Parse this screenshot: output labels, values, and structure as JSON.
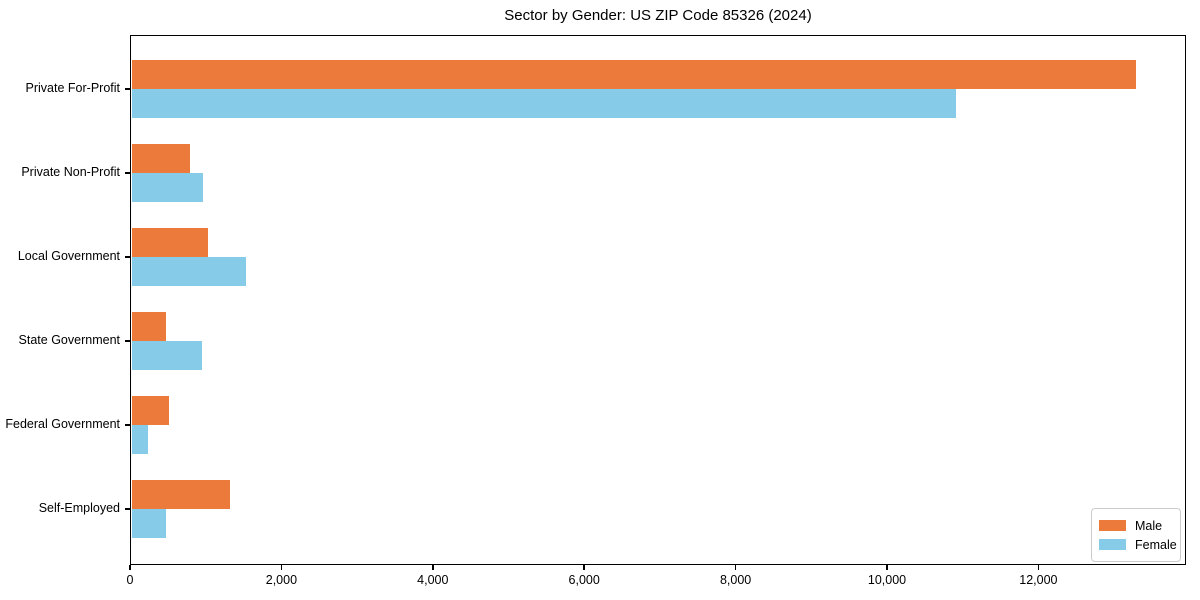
{
  "chart_data": {
    "type": "bar",
    "orientation": "horizontal",
    "title": "Sector by Gender: US ZIP Code 85326 (2024)",
    "categories": [
      "Private For-Profit",
      "Private Non-Profit",
      "Local Government",
      "State Government",
      "Federal Government",
      "Self-Employed"
    ],
    "series": [
      {
        "name": "Male",
        "color": "#EB7A3B",
        "values": [
          13290,
          790,
          1030,
          475,
          515,
          1320
        ]
      },
      {
        "name": "Female",
        "color": "#86CCE8",
        "values": [
          10910,
          965,
          1535,
          950,
          240,
          475
        ]
      }
    ],
    "xlabel": "",
    "ylabel": "",
    "xlim": [
      0,
      13950
    ],
    "x_ticks": [
      0,
      2000,
      4000,
      6000,
      8000,
      10000,
      12000
    ],
    "x_tick_labels": [
      "0",
      "2,000",
      "4,000",
      "6,000",
      "8,000",
      "10,000",
      "12,000"
    ],
    "grid": false,
    "legend": {
      "position": "lower right",
      "entries": [
        "Male",
        "Female"
      ]
    }
  }
}
